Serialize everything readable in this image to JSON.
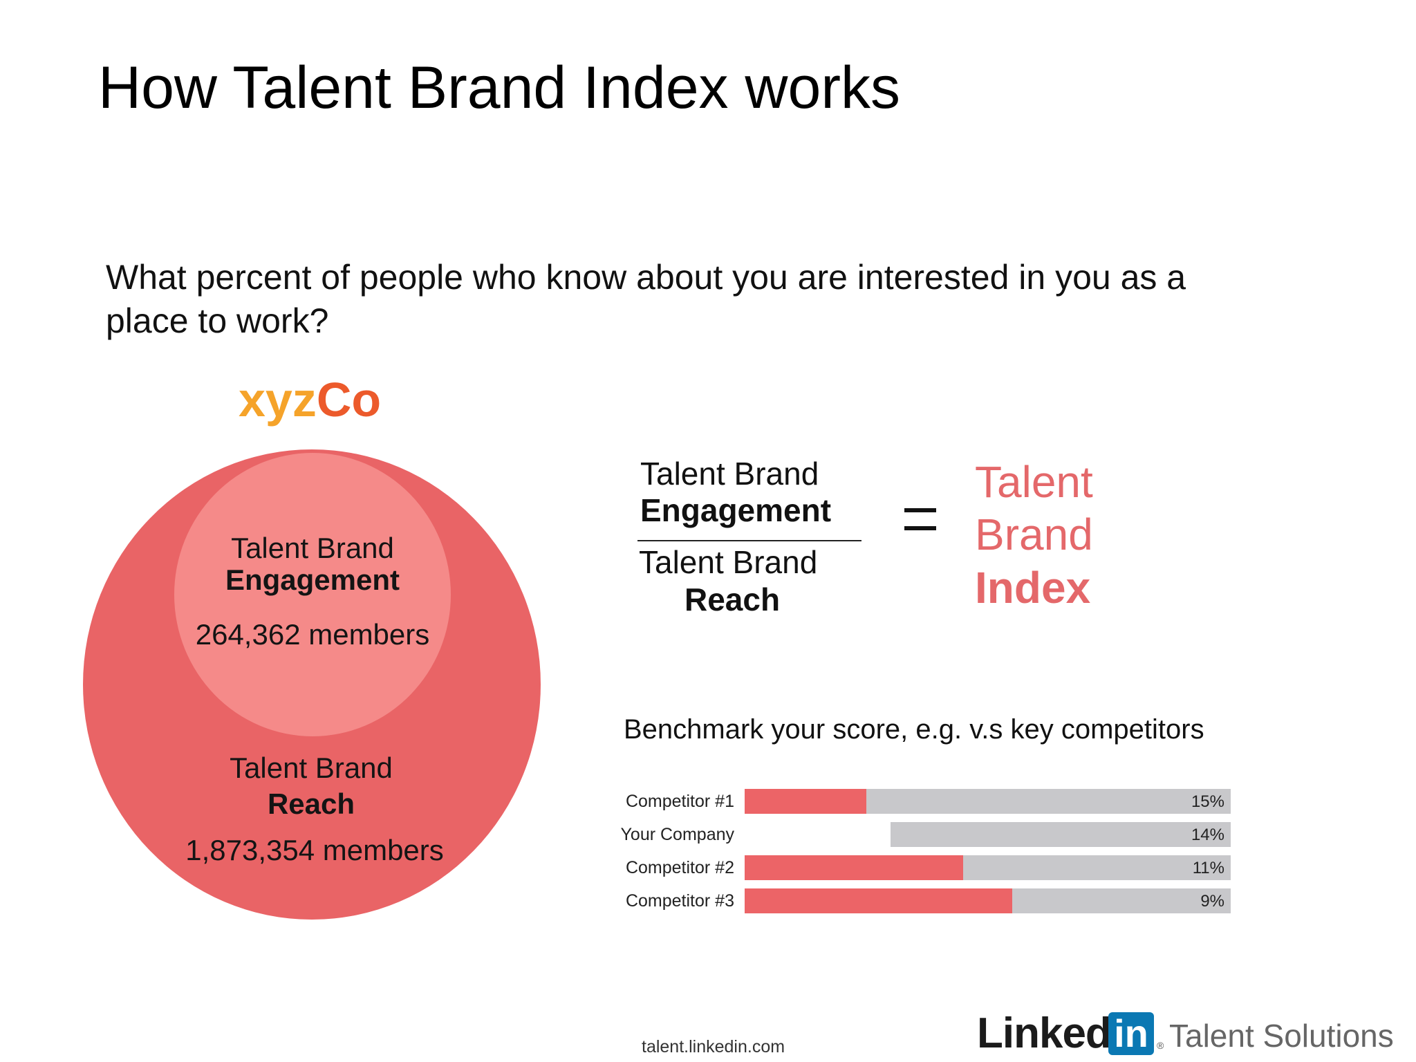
{
  "slide": {
    "title": "How Talent Brand Index works",
    "question": "What percent of people who know about you are interested in you as a place to work?"
  },
  "company": {
    "part1": "xyz",
    "part2": "Co"
  },
  "circles": {
    "engagement": {
      "line1": "Talent Brand",
      "line2": "Engagement",
      "count": "264,362 members"
    },
    "reach": {
      "line1": "Talent Brand",
      "line2": "Reach",
      "count": "1,873,354 members"
    }
  },
  "formula": {
    "numerator_line1": "Talent Brand",
    "numerator_line2": "Engagement",
    "denominator_line1": "Talent Brand",
    "denominator_line2": "Reach",
    "equals": "=",
    "result_line1": "Talent",
    "result_line2": "Brand",
    "result_line3": "Index"
  },
  "benchmark": {
    "heading": "Benchmark your score, e.g. v.s key competitors",
    "rows": [
      {
        "label": "Competitor #1",
        "value_label": "15%",
        "value": 15
      },
      {
        "label": "Your Company",
        "value_label": "14%",
        "value": 14
      },
      {
        "label": "Competitor #2",
        "value_label": "11%",
        "value": 11
      },
      {
        "label": "Competitor #3",
        "value_label": "9%",
        "value": 9
      }
    ]
  },
  "colors": {
    "outer_circle": "#e96466",
    "inner_circle": "#f58a89",
    "accent": "#e4686a",
    "bar_red": "#ec6467",
    "bar_gray": "#c8c8cb",
    "company_part1": "#f5a32a",
    "company_part2": "#ec5a2b",
    "linkedin_blue": "#0b78b3"
  },
  "footer": {
    "url": "talent.linkedin.com",
    "logo_linked": "Linked",
    "logo_in": "in",
    "logo_reg": "®",
    "logo_solutions": "Talent Solutions"
  }
}
